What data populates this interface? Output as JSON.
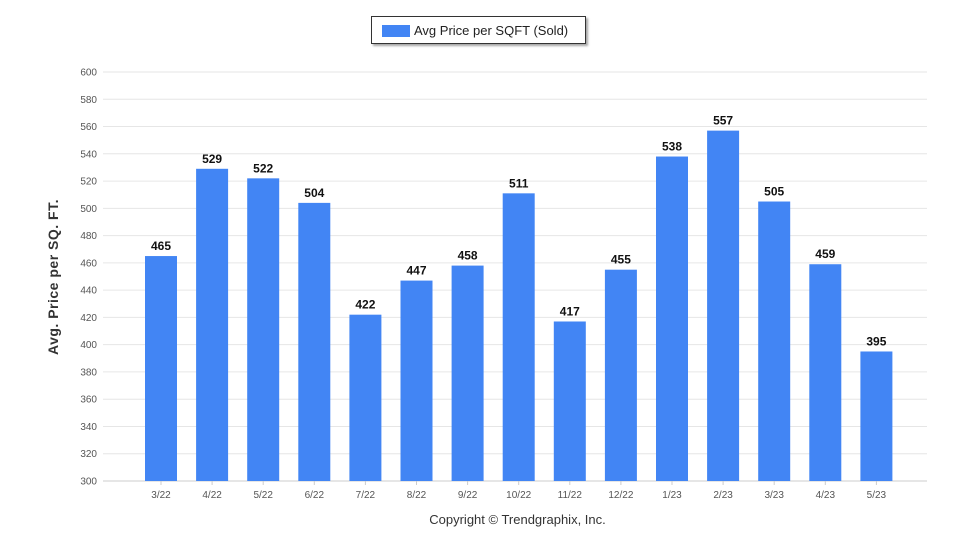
{
  "chart_data": {
    "type": "bar",
    "categories": [
      "3/22",
      "4/22",
      "5/22",
      "6/22",
      "7/22",
      "8/22",
      "9/22",
      "10/22",
      "11/22",
      "12/22",
      "1/23",
      "2/23",
      "3/23",
      "4/23",
      "5/23"
    ],
    "series": [
      {
        "name": "Avg Price per SQFT (Sold)",
        "color": "#4285f4",
        "values": [
          465,
          529,
          522,
          504,
          422,
          447,
          458,
          511,
          417,
          455,
          538,
          557,
          505,
          459,
          395
        ]
      }
    ],
    "ylabel": "Avg. Price per SQ. FT.",
    "xlabel": "",
    "ylim": [
      300,
      600
    ],
    "yticks": [
      300,
      320,
      340,
      360,
      380,
      400,
      420,
      440,
      460,
      480,
      500,
      520,
      540,
      560,
      580,
      600
    ],
    "grid": true,
    "legend_position": "top-center",
    "data_labels": true
  },
  "footer": {
    "copyright": "Copyright © Trendgraphix, Inc."
  }
}
